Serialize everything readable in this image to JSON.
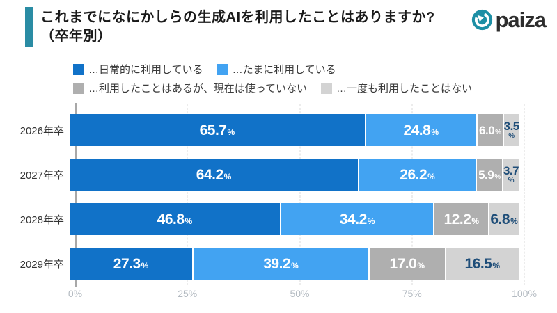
{
  "header": {
    "title_line1": "これまでになにかしらの生成AIを利用したことはありますか?",
    "title_line2": "（卒年別）",
    "accent_color": "#2a8ca4",
    "logo_text": "paiza",
    "logo_color": "#1d8fa5"
  },
  "legend": {
    "rows": [
      [
        {
          "label": "…日常的に利用している",
          "color": "#1172c8"
        },
        {
          "label": "…たまに利用している",
          "color": "#42a3f2"
        }
      ],
      [
        {
          "label": "…利用したことはあるが、現在は使っていない",
          "color": "#afafaf"
        },
        {
          "label": "…一度も利用したことはない",
          "color": "#d3d3d3"
        }
      ]
    ]
  },
  "chart_data": {
    "type": "bar",
    "orientation": "horizontal",
    "stacked": true,
    "title": "これまでになにかしらの生成AIを利用したことはありますか?（卒年別）",
    "categories": [
      "2026年卒",
      "2027年卒",
      "2028年卒",
      "2029年卒"
    ],
    "series": [
      {
        "name": "日常的に利用している",
        "color": "#1172c8",
        "values": [
          65.7,
          64.2,
          46.8,
          27.3
        ],
        "display": [
          "65.7",
          "64.2",
          "46.8",
          "27.3"
        ]
      },
      {
        "name": "たまに利用している",
        "color": "#42a3f2",
        "values": [
          24.8,
          26.2,
          34.2,
          39.2
        ],
        "display": [
          "24.8",
          "26.2",
          "34.2",
          "39.2"
        ]
      },
      {
        "name": "利用したことはあるが、現在は使っていない",
        "color": "#afafaf",
        "values": [
          6.0,
          5.9,
          12.2,
          17.0
        ],
        "display": [
          "6.0",
          "5.9",
          "12.2",
          "17.0"
        ]
      },
      {
        "name": "一度も利用したことはない",
        "color": "#d3d3d3",
        "values": [
          3.5,
          3.7,
          6.8,
          16.5
        ],
        "display": [
          "3.5",
          "3.7",
          "6.8",
          "16.5"
        ]
      }
    ],
    "xticks": [
      "0%",
      "25%",
      "50%",
      "75%",
      "100%"
    ],
    "xlim": [
      0,
      100
    ],
    "grid": "dashed-vertical",
    "legend_position": "top",
    "label_colors": {
      "on_dark": "#ffffff",
      "on_light": "#1f4e79"
    }
  }
}
